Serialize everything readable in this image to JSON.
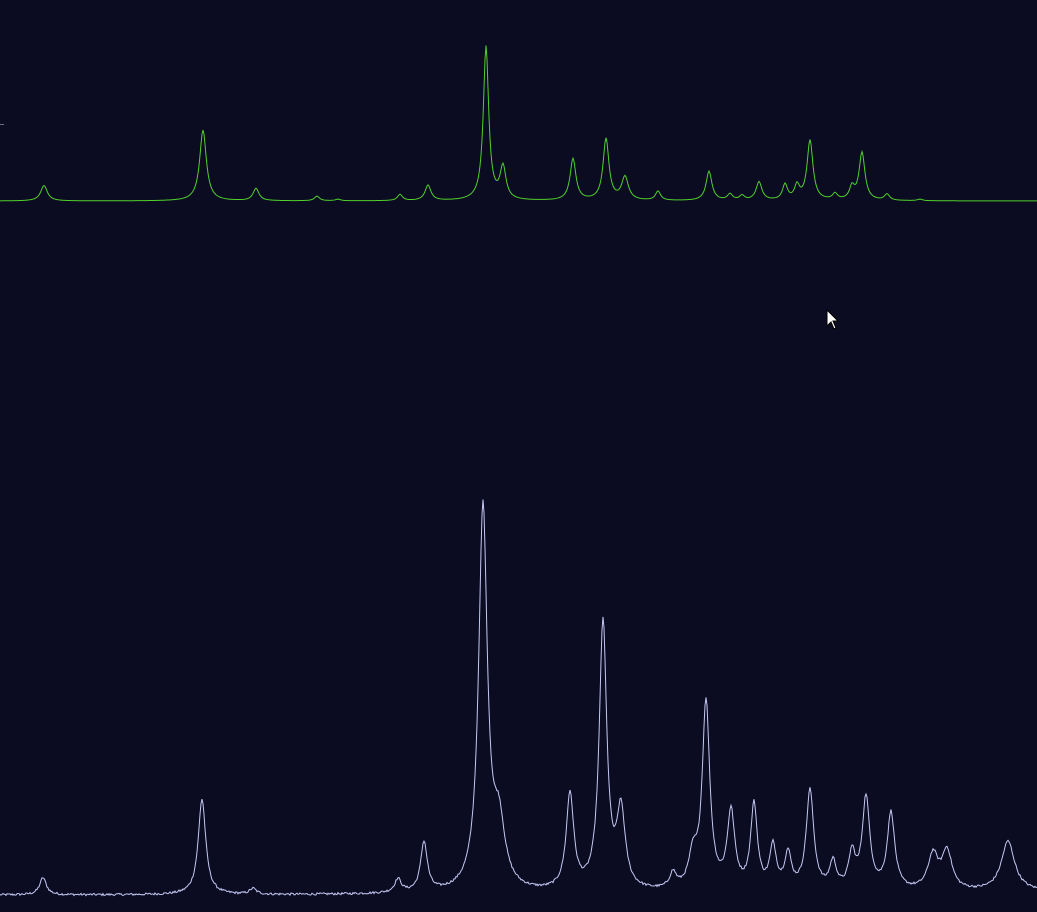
{
  "colors": {
    "background": "#0b0b22",
    "series_top": "#4fd12a",
    "series_bottom": "#c5c9f2",
    "cursor": "#ffffff"
  },
  "cursor_icon": "mouse-pointer-icon",
  "chart_data": [
    {
      "type": "line",
      "title": "",
      "xlabel": "",
      "ylabel": "",
      "xlim": [
        0,
        1037
      ],
      "ylim": [
        0,
        1
      ],
      "grid": false,
      "legend": "none",
      "series": [
        {
          "color": "#4fd12a",
          "baseline": 0.0,
          "noise": 0.0,
          "peaks": [
            {
              "x": 44,
              "h": 0.1,
              "w": 4
            },
            {
              "x": 203,
              "h": 0.46,
              "w": 4
            },
            {
              "x": 256,
              "h": 0.08,
              "w": 3.5
            },
            {
              "x": 317,
              "h": 0.03,
              "w": 3
            },
            {
              "x": 338,
              "h": 0.01,
              "w": 3
            },
            {
              "x": 400,
              "h": 0.04,
              "w": 3
            },
            {
              "x": 428,
              "h": 0.1,
              "w": 3.5
            },
            {
              "x": 486,
              "h": 1.0,
              "w": 3.2
            },
            {
              "x": 503,
              "h": 0.21,
              "w": 3.5
            },
            {
              "x": 573,
              "h": 0.27,
              "w": 3.5
            },
            {
              "x": 606,
              "h": 0.4,
              "w": 3.5
            },
            {
              "x": 625,
              "h": 0.15,
              "w": 4
            },
            {
              "x": 658,
              "h": 0.06,
              "w": 3
            },
            {
              "x": 709,
              "h": 0.19,
              "w": 3.5
            },
            {
              "x": 730,
              "h": 0.04,
              "w": 3
            },
            {
              "x": 742,
              "h": 0.03,
              "w": 3
            },
            {
              "x": 759,
              "h": 0.12,
              "w": 3.5
            },
            {
              "x": 785,
              "h": 0.1,
              "w": 3
            },
            {
              "x": 797,
              "h": 0.09,
              "w": 3
            },
            {
              "x": 810,
              "h": 0.39,
              "w": 3.5
            },
            {
              "x": 835,
              "h": 0.04,
              "w": 3
            },
            {
              "x": 852,
              "h": 0.08,
              "w": 3
            },
            {
              "x": 862,
              "h": 0.31,
              "w": 3.5
            },
            {
              "x": 887,
              "h": 0.04,
              "w": 3
            },
            {
              "x": 920,
              "h": 0.01,
              "w": 3
            }
          ]
        },
        {
          "color": "#c5c9f2",
          "baseline": 0.0,
          "noise": 0.006,
          "peaks": [
            {
              "x": 43,
              "h": 0.045,
              "w": 4
            },
            {
              "x": 202,
              "h": 0.25,
              "w": 4.5
            },
            {
              "x": 253,
              "h": 0.015,
              "w": 4
            },
            {
              "x": 398,
              "h": 0.035,
              "w": 4
            },
            {
              "x": 424,
              "h": 0.13,
              "w": 4
            },
            {
              "x": 483,
              "h": 1.0,
              "w": 5.2
            },
            {
              "x": 499,
              "h": 0.16,
              "w": 7
            },
            {
              "x": 570,
              "h": 0.25,
              "w": 4.5
            },
            {
              "x": 603,
              "h": 0.7,
              "w": 4.5
            },
            {
              "x": 621,
              "h": 0.2,
              "w": 5
            },
            {
              "x": 673,
              "h": 0.04,
              "w": 4
            },
            {
              "x": 693,
              "h": 0.08,
              "w": 5
            },
            {
              "x": 706,
              "h": 0.49,
              "w": 4.5
            },
            {
              "x": 731,
              "h": 0.2,
              "w": 4.5
            },
            {
              "x": 754,
              "h": 0.22,
              "w": 4
            },
            {
              "x": 773,
              "h": 0.11,
              "w": 4
            },
            {
              "x": 788,
              "h": 0.09,
              "w": 4
            },
            {
              "x": 810,
              "h": 0.26,
              "w": 4.5
            },
            {
              "x": 833,
              "h": 0.07,
              "w": 4
            },
            {
              "x": 852,
              "h": 0.09,
              "w": 4
            },
            {
              "x": 866,
              "h": 0.24,
              "w": 4.5
            },
            {
              "x": 891,
              "h": 0.2,
              "w": 4.5
            },
            {
              "x": 933,
              "h": 0.09,
              "w": 6
            },
            {
              "x": 947,
              "h": 0.1,
              "w": 6
            },
            {
              "x": 1008,
              "h": 0.13,
              "w": 8
            }
          ]
        }
      ]
    }
  ]
}
